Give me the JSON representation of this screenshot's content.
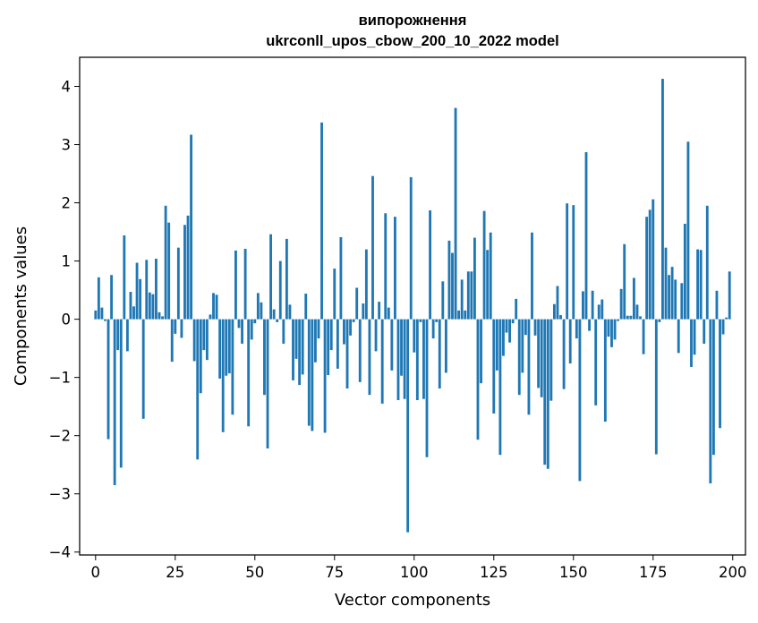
{
  "chart_data": {
    "type": "bar",
    "title": "випорожнення",
    "subtitle": "ukrconll_upos_cbow_200_10_2022 model",
    "xlabel": "Vector components",
    "ylabel": "Components values",
    "xlim": [
      -5,
      204
    ],
    "ylim": [
      -4.05,
      4.5
    ],
    "xticks": [
      0,
      25,
      50,
      75,
      100,
      125,
      150,
      175,
      200
    ],
    "yticks": [
      -4,
      -3,
      -2,
      -1,
      0,
      1,
      2,
      3,
      4
    ],
    "xtick_labels": [
      "0",
      "25",
      "50",
      "75",
      "100",
      "125",
      "150",
      "175",
      "200"
    ],
    "ytick_labels": [
      "−4",
      "−3",
      "−2",
      "−1",
      "0",
      "1",
      "2",
      "3",
      "4"
    ],
    "bar_color": "#1f77b4",
    "grid": false,
    "legend": "none",
    "x": [
      0,
      1,
      2,
      3,
      4,
      5,
      6,
      7,
      8,
      9,
      10,
      11,
      12,
      13,
      14,
      15,
      16,
      17,
      18,
      19,
      20,
      21,
      22,
      23,
      24,
      25,
      26,
      27,
      28,
      29,
      30,
      31,
      32,
      33,
      34,
      35,
      36,
      37,
      38,
      39,
      40,
      41,
      42,
      43,
      44,
      45,
      46,
      47,
      48,
      49,
      50,
      51,
      52,
      53,
      54,
      55,
      56,
      57,
      58,
      59,
      60,
      61,
      62,
      63,
      64,
      65,
      66,
      67,
      68,
      69,
      70,
      71,
      72,
      73,
      74,
      75,
      76,
      77,
      78,
      79,
      80,
      81,
      82,
      83,
      84,
      85,
      86,
      87,
      88,
      89,
      90,
      91,
      92,
      93,
      94,
      95,
      96,
      97,
      98,
      99,
      100,
      101,
      102,
      103,
      104,
      105,
      106,
      107,
      108,
      109,
      110,
      111,
      112,
      113,
      114,
      115,
      116,
      117,
      118,
      119,
      120,
      121,
      122,
      123,
      124,
      125,
      126,
      127,
      128,
      129,
      130,
      131,
      132,
      133,
      134,
      135,
      136,
      137,
      138,
      139,
      140,
      141,
      142,
      143,
      144,
      145,
      146,
      147,
      148,
      149,
      150,
      151,
      152,
      153,
      154,
      155,
      156,
      157,
      158,
      159,
      160,
      161,
      162,
      163,
      164,
      165,
      166,
      167,
      168,
      169,
      170,
      171,
      172,
      173,
      174,
      175,
      176,
      177,
      178,
      179,
      180,
      181,
      182,
      183,
      184,
      185,
      186,
      187,
      188,
      189,
      190,
      191,
      192,
      193,
      194,
      195,
      196,
      197,
      198,
      199
    ],
    "values": [
      0.15,
      0.72,
      0.2,
      -0.03,
      -2.06,
      0.76,
      -2.85,
      -0.53,
      -2.55,
      1.44,
      -0.55,
      0.47,
      0.22,
      0.97,
      0.69,
      -1.71,
      1.02,
      0.46,
      0.43,
      1.04,
      0.12,
      0.05,
      1.95,
      1.66,
      -0.73,
      -0.25,
      1.23,
      -0.32,
      1.62,
      1.78,
      3.17,
      -0.72,
      -2.41,
      -1.27,
      -0.53,
      -0.7,
      0.08,
      0.45,
      0.42,
      -1.02,
      -1.94,
      -0.97,
      -0.93,
      -1.64,
      1.18,
      -0.15,
      -0.42,
      1.21,
      -1.84,
      -0.35,
      -0.07,
      0.45,
      0.29,
      -1.3,
      -2.22,
      1.46,
      0.17,
      -0.05,
      1.0,
      -0.42,
      1.38,
      0.25,
      -1.05,
      -0.68,
      -1.13,
      -0.95,
      0.44,
      -1.83,
      -1.92,
      -0.74,
      -0.33,
      3.38,
      -1.95,
      -0.96,
      -0.53,
      0.87,
      -0.85,
      1.41,
      -0.43,
      -1.19,
      -0.28,
      -0.05,
      0.54,
      -1.08,
      0.27,
      1.2,
      -1.3,
      2.46,
      -0.55,
      0.3,
      -1.45,
      1.82,
      0.2,
      -0.88,
      1.76,
      -1.39,
      -0.97,
      -1.37,
      -3.66,
      2.44,
      -0.57,
      -1.39,
      -0.05,
      -1.37,
      -2.37,
      1.87,
      -0.33,
      -0.05,
      -1.19,
      0.65,
      -0.92,
      1.35,
      1.14,
      3.63,
      0.15,
      0.68,
      0.15,
      0.82,
      0.82,
      1.4,
      -2.07,
      -1.1,
      1.86,
      1.19,
      1.49,
      -1.62,
      -0.88,
      -2.33,
      -0.63,
      -0.23,
      -0.4,
      -0.07,
      0.35,
      -1.3,
      -0.92,
      -0.27,
      -1.64,
      1.49,
      -0.28,
      -1.18,
      -1.34,
      -2.5,
      -2.57,
      -1.4,
      0.26,
      0.57,
      0.07,
      -1.2,
      1.99,
      -0.76,
      1.96,
      -0.33,
      -2.78,
      0.48,
      2.87,
      -0.2,
      0.49,
      -1.48,
      0.25,
      0.34,
      -1.76,
      -0.3,
      -0.48,
      -0.35,
      -0.03,
      0.52,
      1.29,
      0.06,
      0.06,
      0.71,
      0.25,
      0.05,
      -0.6,
      1.76,
      1.88,
      2.06,
      -2.32,
      -0.05,
      4.13,
      1.23,
      0.76,
      0.9,
      0.68,
      -0.58,
      0.62,
      1.64,
      3.05,
      -0.82,
      -0.61,
      1.2,
      1.19,
      -0.42,
      1.95,
      -2.82,
      -2.33,
      0.49,
      -1.87,
      -0.26,
      0.03,
      0.82
    ]
  }
}
